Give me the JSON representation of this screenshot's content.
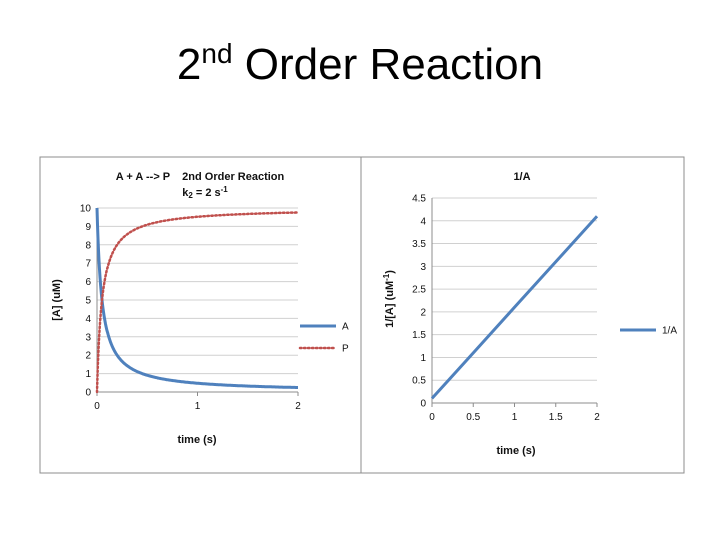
{
  "slide": {
    "title_base": "2",
    "title_sup": "nd",
    "title_rest": " Order Reaction"
  },
  "chart_data": [
    {
      "type": "line",
      "title_line1": "A + A --> P    2nd Order Reaction",
      "title_line2_pre": "k",
      "title_line2_sub": "2",
      "title_line2_mid": " = 2 s",
      "title_line2_sup": "-1",
      "xlabel": "time (s)",
      "ylabel": "[A] (uM)",
      "xlim": [
        0,
        2
      ],
      "ylim": [
        0,
        10
      ],
      "xticks": [
        0,
        1,
        2
      ],
      "yticks": [
        0,
        1,
        2,
        3,
        4,
        5,
        6,
        7,
        8,
        9,
        10
      ],
      "grid": true,
      "legend": "right",
      "model": {
        "A0": 10,
        "k": 2
      },
      "series": [
        {
          "name": "A",
          "color": "#4f81bd",
          "style": "solid",
          "x": [
            0,
            0.01,
            0.02,
            0.03,
            0.05,
            0.07,
            0.1,
            0.15,
            0.2,
            0.25,
            0.3,
            0.4,
            0.5,
            0.6,
            0.8,
            1.0,
            1.2,
            1.4,
            1.6,
            1.8,
            2.0
          ],
          "y": [
            10,
            8.33,
            7.14,
            6.25,
            5.0,
            4.17,
            3.33,
            2.5,
            2.0,
            1.67,
            1.43,
            1.11,
            0.91,
            0.77,
            0.59,
            0.48,
            0.4,
            0.34,
            0.3,
            0.27,
            0.24
          ]
        },
        {
          "name": "P",
          "color": "#c0504d",
          "style": "dotted",
          "x": [
            0,
            0.01,
            0.02,
            0.03,
            0.05,
            0.07,
            0.1,
            0.15,
            0.2,
            0.25,
            0.3,
            0.4,
            0.5,
            0.6,
            0.8,
            1.0,
            1.2,
            1.4,
            1.6,
            1.8,
            2.0
          ],
          "y": [
            0,
            1.67,
            2.86,
            3.75,
            5.0,
            5.83,
            6.67,
            7.5,
            8.0,
            8.33,
            8.57,
            8.89,
            9.09,
            9.23,
            9.41,
            9.52,
            9.6,
            9.66,
            9.7,
            9.73,
            9.76
          ]
        }
      ]
    },
    {
      "type": "line",
      "title": "1/A",
      "xlabel": "time (s)",
      "ylabel_pre": "1/[A] (uM",
      "ylabel_sup": "-1",
      "ylabel_post": ")",
      "xlim": [
        0,
        2
      ],
      "ylim": [
        0,
        4.5
      ],
      "xticks": [
        0,
        0.5,
        1,
        1.5,
        2
      ],
      "yticks": [
        0,
        0.5,
        1,
        1.5,
        2,
        2.5,
        3,
        3.5,
        4,
        4.5
      ],
      "grid": true,
      "legend": "right",
      "series": [
        {
          "name": "1/A",
          "color": "#4f81bd",
          "style": "solid",
          "x": [
            0,
            0.5,
            1,
            1.5,
            2
          ],
          "y": [
            0.1,
            1.1,
            2.1,
            3.1,
            4.1
          ]
        }
      ]
    }
  ]
}
